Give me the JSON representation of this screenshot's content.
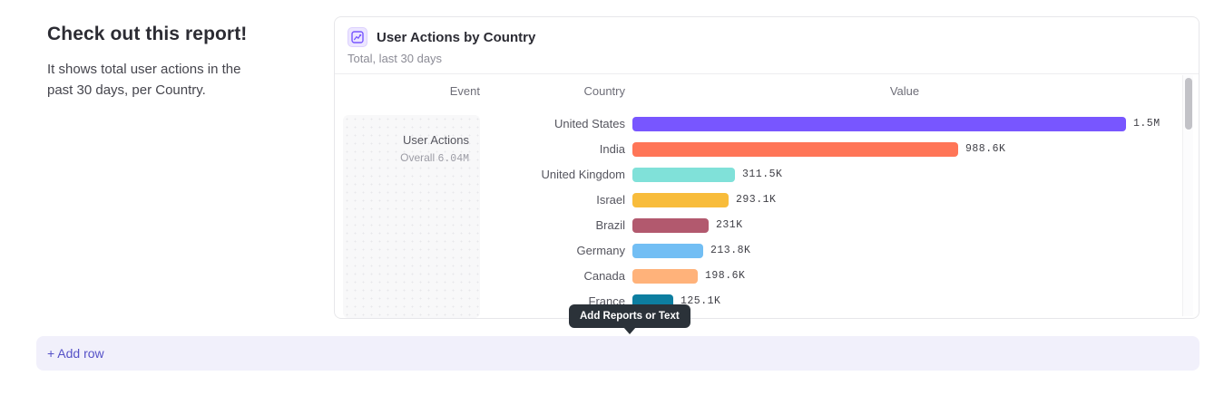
{
  "intro": {
    "title": "Check out this report!",
    "description": "It shows total user actions in the past 30 days, per Country."
  },
  "report_card": {
    "icon": "insights-line-chart-icon",
    "title": "User Actions by Country",
    "subtitle": "Total, last 30 days",
    "columns": {
      "event": "Event",
      "country": "Country",
      "value": "Value"
    },
    "event": {
      "name": "User Actions",
      "overall_label": "Overall",
      "overall_value": "6.04M"
    },
    "chart_data": {
      "type": "bar",
      "orientation": "horizontal",
      "title": "User Actions by Country",
      "xlabel": "Value",
      "ylabel": "Country",
      "xlim": [
        0,
        1500000
      ],
      "categories": [
        "United States",
        "India",
        "United Kingdom",
        "Israel",
        "Brazil",
        "Germany",
        "Canada",
        "France"
      ],
      "values": [
        1500000,
        988600,
        311500,
        293100,
        231000,
        213800,
        198600,
        125100
      ],
      "value_labels": [
        "1.5M",
        "988.6K",
        "311.5K",
        "293.1K",
        "231K",
        "213.8K",
        "198.6K",
        "125.1K"
      ],
      "bar_colors": [
        "#7856FF",
        "#FF7557",
        "#80E1D9",
        "#F8BC3B",
        "#B2596E",
        "#72BEF4",
        "#FFB27A",
        "#0D7EA0"
      ],
      "grid": false,
      "legend": false
    }
  },
  "tooltip": {
    "label": "Add Reports or Text"
  },
  "add_row": {
    "label": "+ Add row"
  },
  "colors": {
    "accent": "#7856FF",
    "link": "#5551c7",
    "tooltip_bg": "#2b3239",
    "add_row_bg": "#f1f0fb",
    "card_border": "#e7e7ea"
  }
}
